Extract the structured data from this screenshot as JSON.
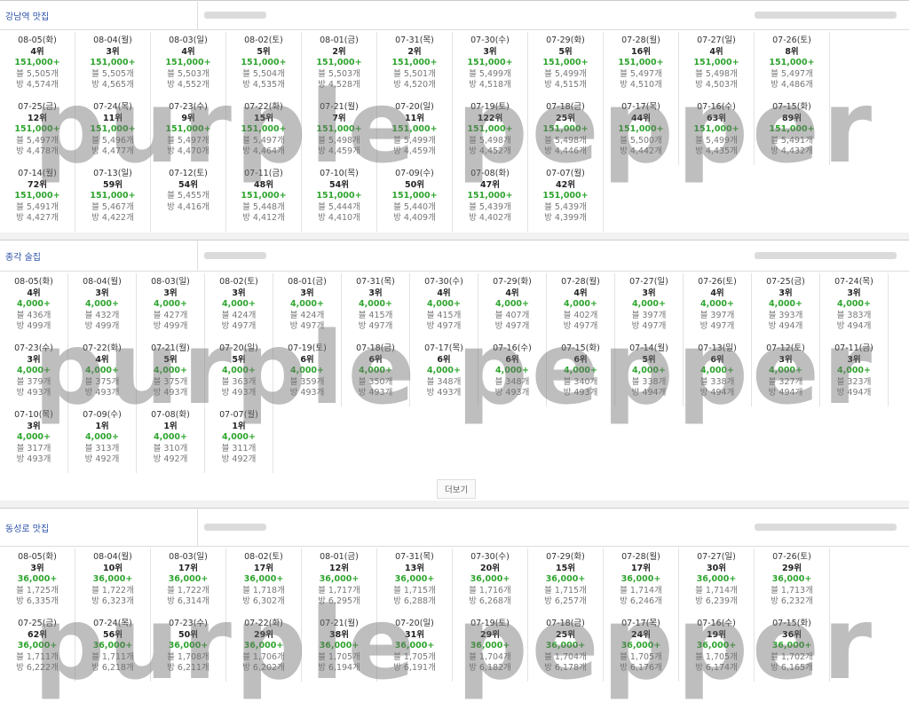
{
  "watermark": "purple pepper",
  "more": "더보기",
  "sections": [
    {
      "title": "강남역 맛집",
      "rows": [
        [
          [
            "08-05(화)",
            "4위",
            "151,000+",
            "블 5,505개",
            "방 4,574개"
          ],
          [
            "08-04(월)",
            "3위",
            "151,000+",
            "블 5,505개",
            "방 4,565개"
          ],
          [
            "08-03(일)",
            "4위",
            "151,000+",
            "블 5,503개",
            "방 4,552개"
          ],
          [
            "08-02(토)",
            "5위",
            "151,000+",
            "블 5,504개",
            "방 4,535개"
          ],
          [
            "08-01(금)",
            "2위",
            "151,000+",
            "블 5,503개",
            "방 4,528개"
          ],
          [
            "07-31(목)",
            "2위",
            "151,000+",
            "블 5,501개",
            "방 4,520개"
          ],
          [
            "07-30(수)",
            "3위",
            "151,000+",
            "블 5,499개",
            "방 4,518개"
          ],
          [
            "07-29(화)",
            "5위",
            "151,000+",
            "블 5,499개",
            "방 4,515개"
          ],
          [
            "07-28(월)",
            "16위",
            "151,000+",
            "블 5,497개",
            "방 4,510개"
          ],
          [
            "07-27(일)",
            "4위",
            "151,000+",
            "블 5,498개",
            "방 4,503개"
          ],
          [
            "07-26(토)",
            "8위",
            "151,000+",
            "블 5,497개",
            "방 4,486개"
          ]
        ],
        [
          [
            "07-25(금)",
            "12위",
            "151,000+",
            "블 5,497개",
            "방 4,478개"
          ],
          [
            "07-24(목)",
            "11위",
            "151,000+",
            "블 5,496개",
            "방 4,477개"
          ],
          [
            "07-23(수)",
            "9위",
            "151,000+",
            "블 5,497개",
            "방 4,470개"
          ],
          [
            "07-22(화)",
            "15위",
            "151,000+",
            "블 5,497개",
            "방 4,464개"
          ],
          [
            "07-21(월)",
            "7위",
            "151,000+",
            "블 5,498개",
            "방 4,459개"
          ],
          [
            "07-20(일)",
            "11위",
            "151,000+",
            "블 5,499개",
            "방 4,459개"
          ],
          [
            "07-19(토)",
            "122위",
            "151,000+",
            "블 5,498개",
            "방 4,452개"
          ],
          [
            "07-18(금)",
            "25위",
            "151,000+",
            "블 5,498개",
            "방 4,446개"
          ],
          [
            "07-17(목)",
            "44위",
            "151,000+",
            "블 5,500개",
            "방 4,442개"
          ],
          [
            "07-16(수)",
            "63위",
            "151,000+",
            "블 5,499개",
            "방 4,435개"
          ],
          [
            "07-15(화)",
            "89위",
            "151,000+",
            "블 5,491개",
            "방 4,432개"
          ]
        ],
        [
          [
            "07-14(월)",
            "72위",
            "151,000+",
            "블 5,491개",
            "방 4,427개"
          ],
          [
            "07-13(일)",
            "59위",
            "151,000+",
            "블 5,467개",
            "방 4,422개"
          ],
          [
            "07-12(토)",
            "54위",
            null,
            "블 5,455개",
            "방 4,416개"
          ],
          [
            "07-11(금)",
            "48위",
            "151,000+",
            "블 5,448개",
            "방 4,412개"
          ],
          [
            "07-10(목)",
            "54위",
            "151,000+",
            "블 5,444개",
            "방 4,410개"
          ],
          [
            "07-09(수)",
            "50위",
            "151,000+",
            "블 5,440개",
            "방 4,409개"
          ],
          [
            "07-08(화)",
            "47위",
            "151,000+",
            "블 5,439개",
            "방 4,402개"
          ],
          [
            "07-07(월)",
            "42위",
            "151,000+",
            "블 5,439개",
            "방 4,399개"
          ]
        ]
      ]
    },
    {
      "title": "종각 술집",
      "rows": [
        [
          [
            "08-05(화)",
            "4위",
            "4,000+",
            "블 436개",
            "방 499개"
          ],
          [
            "08-04(월)",
            "3위",
            "4,000+",
            "블 432개",
            "방 499개"
          ],
          [
            "08-03(일)",
            "3위",
            "4,000+",
            "블 427개",
            "방 499개"
          ],
          [
            "08-02(토)",
            "3위",
            "4,000+",
            "블 424개",
            "방 497개"
          ],
          [
            "08-01(금)",
            "3위",
            "4,000+",
            "블 424개",
            "방 497개"
          ],
          [
            "07-31(목)",
            "3위",
            "4,000+",
            "블 415개",
            "방 497개"
          ],
          [
            "07-30(수)",
            "4위",
            "4,000+",
            "블 415개",
            "방 497개"
          ],
          [
            "07-29(화)",
            "4위",
            "4,000+",
            "블 407개",
            "방 497개"
          ],
          [
            "07-28(월)",
            "4위",
            "4,000+",
            "블 402개",
            "방 497개"
          ],
          [
            "07-27(일)",
            "3위",
            "4,000+",
            "블 397개",
            "방 497개"
          ],
          [
            "07-26(토)",
            "4위",
            "4,000+",
            "블 397개",
            "방 497개"
          ],
          [
            "07-25(금)",
            "3위",
            "4,000+",
            "블 393개",
            "방 494개"
          ],
          [
            "07-24(목)",
            "3위",
            "4,000+",
            "블 383개",
            "방 494개"
          ]
        ],
        [
          [
            "07-23(수)",
            "3위",
            "4,000+",
            "블 379개",
            "방 493개"
          ],
          [
            "07-22(화)",
            "4위",
            "4,000+",
            "블 375개",
            "방 493개"
          ],
          [
            "07-21(월)",
            "5위",
            "4,000+",
            "블 375개",
            "방 493개"
          ],
          [
            "07-20(일)",
            "5위",
            "4,000+",
            "블 363개",
            "방 493개"
          ],
          [
            "07-19(토)",
            "6위",
            "4,000+",
            "블 359개",
            "방 493개"
          ],
          [
            "07-18(금)",
            "6위",
            "4,000+",
            "블 350개",
            "방 493개"
          ],
          [
            "07-17(목)",
            "6위",
            "4,000+",
            "블 348개",
            "방 493개"
          ],
          [
            "07-16(수)",
            "6위",
            "4,000+",
            "블 348개",
            "방 493개"
          ],
          [
            "07-15(화)",
            "6위",
            "4,000+",
            "블 340개",
            "방 493개"
          ],
          [
            "07-14(월)",
            "5위",
            "4,000+",
            "블 338개",
            "방 494개"
          ],
          [
            "07-13(일)",
            "6위",
            "4,000+",
            "블 338개",
            "방 494개"
          ],
          [
            "07-12(토)",
            "3위",
            "4,000+",
            "블 327개",
            "방 494개"
          ],
          [
            "07-11(금)",
            "3위",
            "4,000+",
            "블 323개",
            "방 494개"
          ]
        ],
        [
          [
            "07-10(목)",
            "3위",
            "4,000+",
            "블 317개",
            "방 493개"
          ],
          [
            "07-09(수)",
            "1위",
            "4,000+",
            "블 313개",
            "방 492개"
          ],
          [
            "07-08(화)",
            "1위",
            "4,000+",
            "블 310개",
            "방 492개"
          ],
          [
            "07-07(월)",
            "1위",
            "4,000+",
            "블 311개",
            "방 492개"
          ]
        ]
      ]
    },
    {
      "title": "동성로 맛집",
      "rows": [
        [
          [
            "08-05(화)",
            "3위",
            "36,000+",
            "블 1,725개",
            "방 6,335개"
          ],
          [
            "08-04(월)",
            "10위",
            "36,000+",
            "블 1,722개",
            "방 6,323개"
          ],
          [
            "08-03(일)",
            "17위",
            "36,000+",
            "블 1,722개",
            "방 6,314개"
          ],
          [
            "08-02(토)",
            "17위",
            "36,000+",
            "블 1,718개",
            "방 6,302개"
          ],
          [
            "08-01(금)",
            "12위",
            "36,000+",
            "블 1,717개",
            "방 6,295개"
          ],
          [
            "07-31(목)",
            "13위",
            "36,000+",
            "블 1,715개",
            "방 6,288개"
          ],
          [
            "07-30(수)",
            "20위",
            "36,000+",
            "블 1,716개",
            "방 6,268개"
          ],
          [
            "07-29(화)",
            "15위",
            "36,000+",
            "블 1,715개",
            "방 6,257개"
          ],
          [
            "07-28(월)",
            "17위",
            "36,000+",
            "블 1,714개",
            "방 6,246개"
          ],
          [
            "07-27(일)",
            "30위",
            "36,000+",
            "블 1,714개",
            "방 6,239개"
          ],
          [
            "07-26(토)",
            "29위",
            "36,000+",
            "블 1,713개",
            "방 6,232개"
          ]
        ],
        [
          [
            "07-25(금)",
            "62위",
            "36,000+",
            "블 1,711개",
            "방 6,222개"
          ],
          [
            "07-24(목)",
            "56위",
            "36,000+",
            "블 1,711개",
            "방 6,218개"
          ],
          [
            "07-23(수)",
            "50위",
            "36,000+",
            "블 1,708개",
            "방 6,211개"
          ],
          [
            "07-22(화)",
            "29위",
            "36,000+",
            "블 1,706개",
            "방 6,202개"
          ],
          [
            "07-21(월)",
            "38위",
            "36,000+",
            "블 1,705개",
            "방 6,194개"
          ],
          [
            "07-20(일)",
            "31위",
            "36,000+",
            "블 1,705개",
            "방 6,191개"
          ],
          [
            "07-19(토)",
            "29위",
            "36,000+",
            "블 1,704개",
            "방 6,182개"
          ],
          [
            "07-18(금)",
            "25위",
            "36,000+",
            "블 1,704개",
            "방 6,178개"
          ],
          [
            "07-17(목)",
            "24위",
            "36,000+",
            "블 1,705개",
            "방 6,176개"
          ],
          [
            "07-16(수)",
            "19위",
            "36,000+",
            "블 1,705개",
            "방 6,174개"
          ],
          [
            "07-15(화)",
            "36위",
            "36,000+",
            "블 1,702개",
            "방 6,165개"
          ]
        ]
      ]
    }
  ]
}
